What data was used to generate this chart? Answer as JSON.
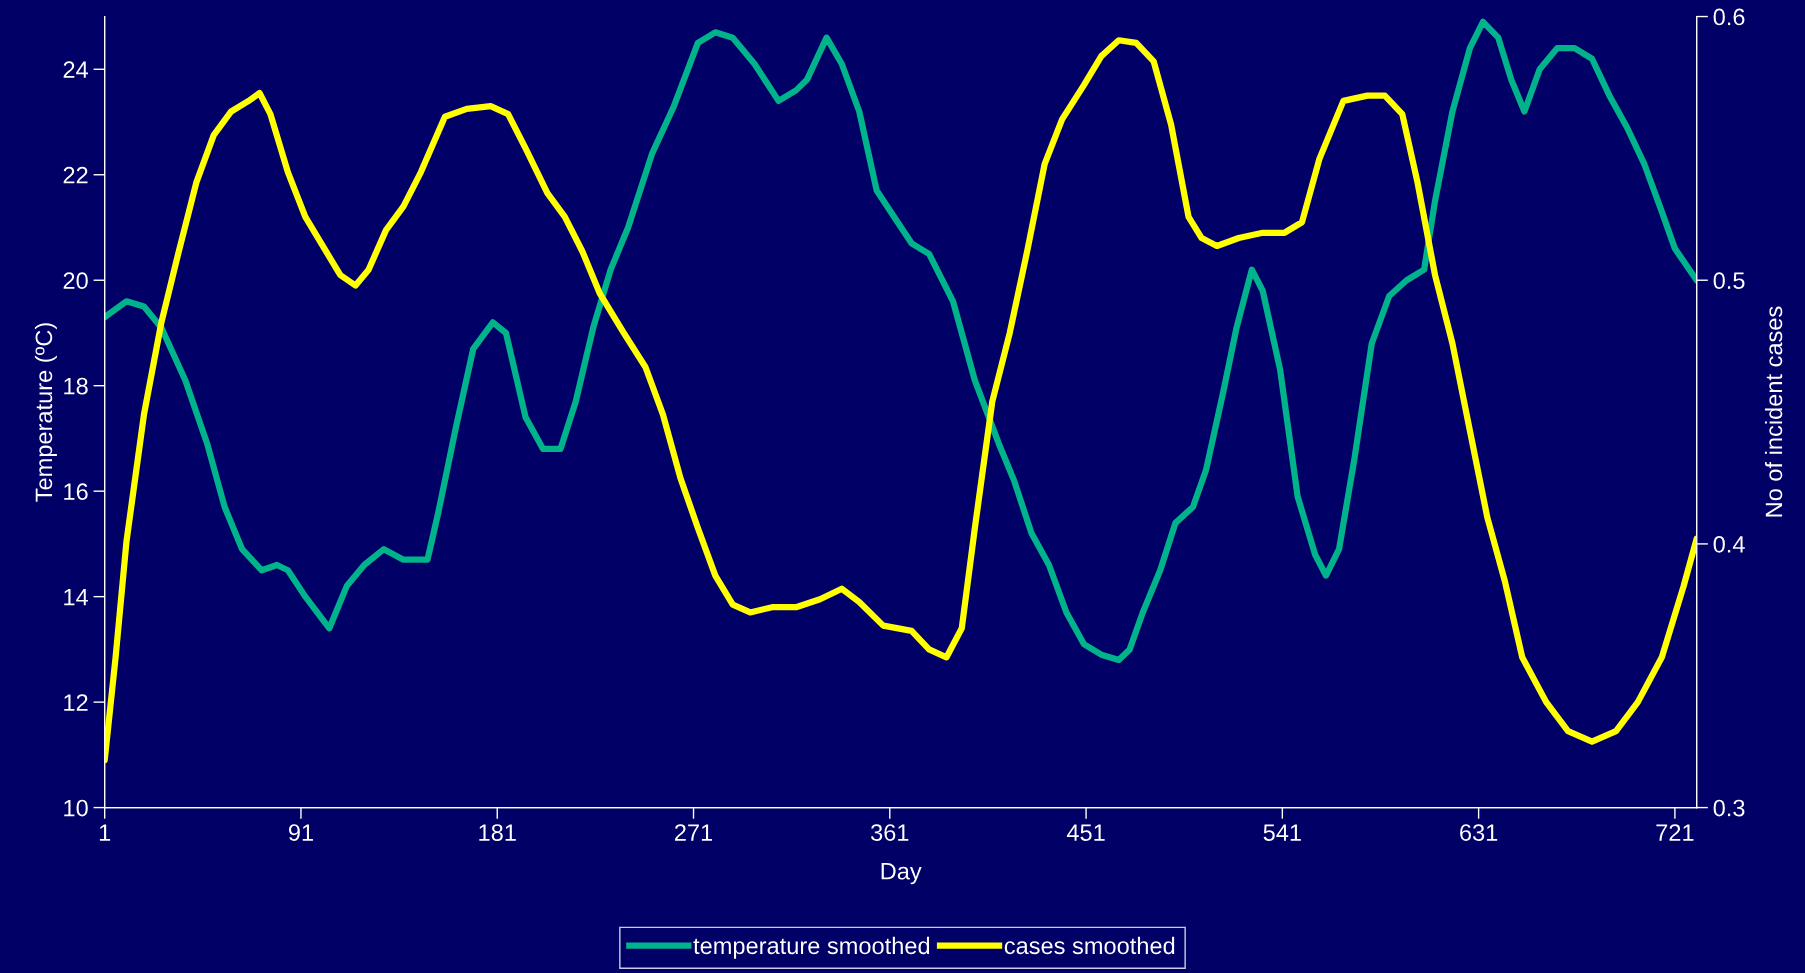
{
  "chart_data": {
    "type": "line",
    "xlabel": "Day",
    "ylabel": "Temperature (ºC)",
    "y2label": "No of incident cases",
    "xlim": [
      1,
      731
    ],
    "xticks": [
      1,
      91,
      181,
      271,
      361,
      451,
      541,
      631,
      721
    ],
    "ylim": [
      10,
      25
    ],
    "yticks": [
      10,
      12,
      14,
      16,
      18,
      20,
      22,
      24
    ],
    "y2lim": [
      0.3,
      0.6
    ],
    "y2ticks": [
      0.3,
      0.4,
      0.5,
      0.6
    ],
    "grid": false,
    "legend": "bottom",
    "marker": "none",
    "line_style": "solid",
    "series": [
      {
        "name": "temperature smoothed",
        "color": "#00b38a",
        "x": [
          1,
          11,
          19,
          27,
          38,
          48,
          56,
          64,
          73,
          80,
          85,
          93,
          104,
          112,
          120,
          129,
          138,
          149,
          154,
          162,
          170,
          179,
          185,
          194,
          202,
          210,
          217,
          225,
          233,
          241,
          252,
          262,
          273,
          281,
          289,
          299,
          310,
          318,
          323,
          332,
          339,
          347,
          355,
          363,
          371,
          379,
          390,
          400,
          411,
          418,
          426,
          434,
          442,
          450,
          458,
          466,
          471,
          477,
          485,
          492,
          500,
          506,
          514,
          520,
          527,
          532,
          540,
          548,
          556,
          561,
          567,
          574,
          582,
          590,
          598,
          606,
          611,
          619,
          627,
          633,
          640,
          646,
          652,
          659,
          667,
          675,
          683,
          691,
          699,
          707,
          715,
          721,
          731
        ],
        "values": [
          19.3,
          19.6,
          19.5,
          19.1,
          18.1,
          16.9,
          15.7,
          14.9,
          14.5,
          14.6,
          14.5,
          14.0,
          13.4,
          14.2,
          14.6,
          14.9,
          14.7,
          14.7,
          15.6,
          17.2,
          18.7,
          19.2,
          19.0,
          17.4,
          16.8,
          16.8,
          17.7,
          19.1,
          20.2,
          21.0,
          22.4,
          23.3,
          24.5,
          24.7,
          24.6,
          24.1,
          23.4,
          23.6,
          23.8,
          24.6,
          24.1,
          23.2,
          21.7,
          21.2,
          20.7,
          20.5,
          19.6,
          18.1,
          16.9,
          16.2,
          15.2,
          14.6,
          13.7,
          13.1,
          12.9,
          12.8,
          13.0,
          13.7,
          14.5,
          15.4,
          15.7,
          16.4,
          17.9,
          19.1,
          20.2,
          19.8,
          18.3,
          15.9,
          14.8,
          14.4,
          14.9,
          16.6,
          18.8,
          19.7,
          20.0,
          20.2,
          21.5,
          23.2,
          24.4,
          24.9,
          24.6,
          23.8,
          23.2,
          24.0,
          24.4,
          24.4,
          24.2,
          23.5,
          22.9,
          22.2,
          21.3,
          20.6,
          20.0
        ]
      },
      {
        "name": "cases smoothed",
        "color": "#ffff00",
        "axis": "y2",
        "x": [
          1,
          6,
          11,
          19,
          27,
          35,
          43,
          51,
          59,
          67,
          72,
          77,
          85,
          93,
          101,
          109,
          116,
          122,
          130,
          138,
          146,
          157,
          167,
          178,
          186,
          194,
          204,
          212,
          220,
          228,
          239,
          249,
          257,
          265,
          273,
          281,
          289,
          297,
          307,
          318,
          329,
          339,
          347,
          358,
          371,
          379,
          387,
          394,
          400,
          408,
          416,
          424,
          432,
          440,
          450,
          458,
          466,
          474,
          482,
          490,
          498,
          504,
          511,
          521,
          532,
          542,
          550,
          558,
          569,
          580,
          588,
          596,
          603,
          611,
          619,
          627,
          635,
          643,
          651,
          662,
          672,
          683,
          694,
          704,
          715,
          725,
          731
        ],
        "values": [
          0.318,
          0.357,
          0.401,
          0.449,
          0.484,
          0.511,
          0.537,
          0.555,
          0.564,
          0.568,
          0.571,
          0.563,
          0.541,
          0.524,
          0.513,
          0.502,
          0.498,
          0.504,
          0.519,
          0.528,
          0.541,
          0.562,
          0.565,
          0.566,
          0.563,
          0.55,
          0.533,
          0.524,
          0.511,
          0.495,
          0.48,
          0.467,
          0.449,
          0.425,
          0.406,
          0.388,
          0.377,
          0.374,
          0.376,
          0.376,
          0.379,
          0.383,
          0.378,
          0.369,
          0.367,
          0.36,
          0.357,
          0.368,
          0.406,
          0.454,
          0.48,
          0.511,
          0.544,
          0.561,
          0.574,
          0.585,
          0.591,
          0.59,
          0.583,
          0.559,
          0.524,
          0.516,
          0.513,
          0.516,
          0.518,
          0.518,
          0.522,
          0.546,
          0.568,
          0.57,
          0.57,
          0.563,
          0.537,
          0.502,
          0.476,
          0.443,
          0.41,
          0.386,
          0.357,
          0.34,
          0.329,
          0.325,
          0.329,
          0.34,
          0.357,
          0.384,
          0.402
        ]
      }
    ]
  }
}
